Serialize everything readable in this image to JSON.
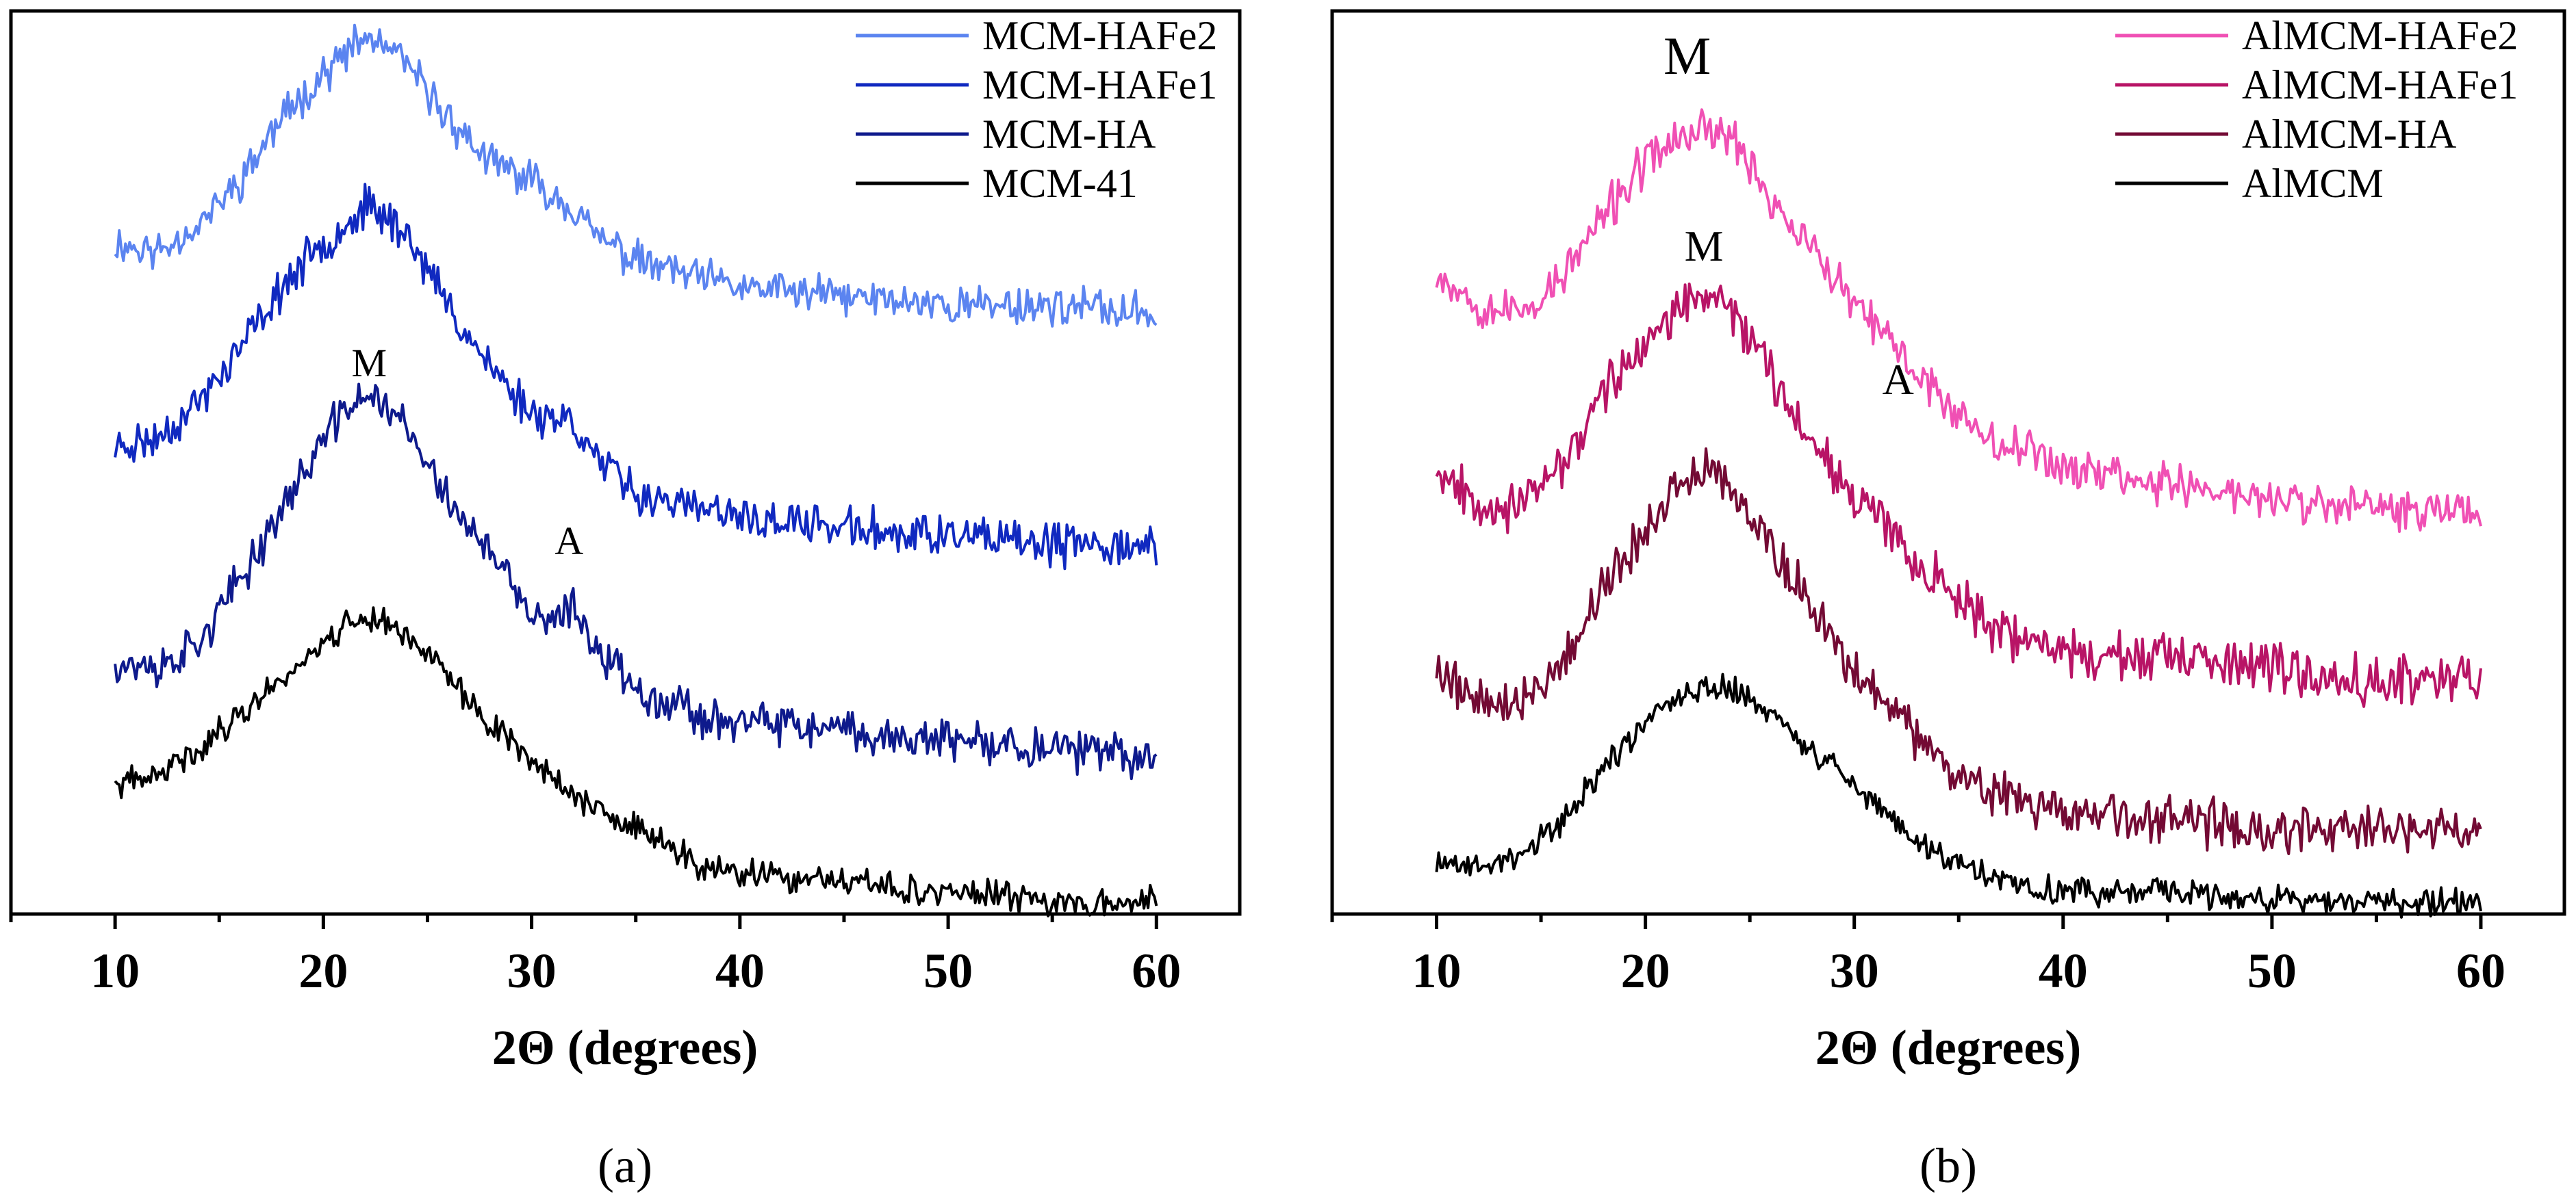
{
  "chart_data": [
    {
      "id": "a",
      "type": "line",
      "panel_label": "(a)",
      "xlabel": "2Θ (degrees)",
      "ylabel": "",
      "xlim": [
        5,
        64
      ],
      "ylim": [
        0,
        100
      ],
      "xticks": [
        10,
        20,
        30,
        40,
        50,
        60
      ],
      "legend": {
        "position": "top-right"
      },
      "peak_annotations": [
        {
          "text": "M",
          "x": 22.2,
          "y": 60
        },
        {
          "text": "A",
          "x": 31.8,
          "y": 40
        }
      ],
      "series": [
        {
          "name": "MCM-HAFe2",
          "color": "#5b84f0",
          "x": [
            10,
            12,
            14,
            16,
            18,
            20,
            21,
            22,
            23,
            24,
            25,
            26,
            28,
            30,
            32,
            33,
            35,
            38,
            40,
            45,
            50,
            55,
            60
          ],
          "values": [
            75,
            74,
            77,
            82,
            89,
            94,
            96,
            98,
            97,
            95,
            92,
            89,
            84,
            82,
            79,
            76,
            73,
            71,
            70,
            69,
            68,
            68,
            67
          ],
          "noise": 1.2,
          "seed": 11
        },
        {
          "name": "MCM-HAFe1",
          "color": "#1029c0",
          "x": [
            10,
            12,
            14,
            16,
            18,
            20,
            21,
            22,
            23,
            24,
            25,
            26,
            28,
            30,
            32,
            33,
            35,
            38,
            40,
            45,
            50,
            55,
            60
          ],
          "values": [
            52,
            53,
            57,
            63,
            70,
            75,
            77,
            79,
            78,
            76,
            72,
            68,
            61,
            56,
            55,
            51,
            47,
            45,
            44,
            43,
            42,
            41,
            41
          ],
          "noise": 1.3,
          "seed": 23
        },
        {
          "name": "MCM-HA",
          "color": "#0e1a8c",
          "x": [
            10,
            12,
            14,
            16,
            18,
            20,
            21,
            22,
            23,
            24,
            25,
            26,
            28,
            30,
            31,
            32,
            33,
            35,
            38,
            40,
            45,
            50,
            55,
            60
          ],
          "values": [
            28,
            27,
            30,
            37,
            45,
            53,
            56,
            58,
            57,
            54,
            50,
            46,
            40,
            33,
            32,
            34,
            30,
            25,
            22,
            21,
            20,
            19,
            18,
            17
          ],
          "noise": 1.3,
          "seed": 37
        },
        {
          "name": "MCM-41",
          "color": "#000000",
          "x": [
            10,
            12,
            14,
            16,
            18,
            20,
            21,
            22,
            23,
            24,
            25,
            26,
            28,
            30,
            32,
            34,
            36,
            38,
            40,
            45,
            50,
            55,
            60
          ],
          "values": [
            14,
            15,
            18,
            22,
            26,
            30,
            32,
            33,
            32,
            31,
            29,
            26,
            21,
            17,
            13,
            10,
            8,
            5,
            4,
            3,
            2,
            1,
            1
          ],
          "noise": 0.9,
          "seed": 41
        }
      ]
    },
    {
      "id": "b",
      "type": "line",
      "panel_label": "(b)",
      "xlabel": "2Θ (degrees)",
      "ylabel": "",
      "xlim": [
        5,
        64
      ],
      "ylim": [
        0,
        100
      ],
      "xticks": [
        10,
        20,
        30,
        40,
        50,
        60
      ],
      "legend": {
        "position": "top-right"
      },
      "peak_annotations": [
        {
          "text": "M",
          "x": 22.0,
          "y": 94
        },
        {
          "text": "M",
          "x": 22.8,
          "y": 73
        },
        {
          "text": "A",
          "x": 32.1,
          "y": 58
        }
      ],
      "series": [
        {
          "name": "AlMCM-HAFe2",
          "color": "#f050b4",
          "x": [
            10,
            12,
            14,
            16,
            18,
            20,
            21,
            22,
            23,
            24,
            25,
            26,
            28,
            30,
            32,
            34,
            36,
            38,
            40,
            45,
            50,
            55,
            60
          ],
          "values": [
            72,
            68,
            67,
            71,
            78,
            84,
            86,
            87,
            88,
            87,
            84,
            80,
            74,
            68,
            63,
            58,
            54,
            52,
            50,
            48,
            46,
            45,
            45
          ],
          "noise": 1.4,
          "seed": 53
        },
        {
          "name": "AlMCM-HAFe1",
          "color": "#b81466",
          "x": [
            10,
            12,
            14,
            16,
            18,
            20,
            21,
            22,
            23,
            24,
            25,
            26,
            28,
            30,
            32,
            34,
            36,
            38,
            40,
            45,
            50,
            55,
            60
          ],
          "values": [
            50,
            46,
            45,
            50,
            58,
            64,
            66,
            68,
            69,
            68,
            65,
            60,
            53,
            47,
            42,
            37,
            33,
            30,
            29,
            28,
            27,
            26,
            26
          ],
          "noise": 1.5,
          "seed": 67
        },
        {
          "name": "AlMCM-HA",
          "color": "#730a34",
          "x": [
            10,
            12,
            14,
            16,
            18,
            20,
            21,
            22,
            23,
            24,
            25,
            26,
            28,
            30,
            32,
            34,
            36,
            38,
            40,
            45,
            50,
            55,
            60
          ],
          "values": [
            27,
            24,
            23,
            28,
            36,
            43,
            46,
            48,
            49,
            48,
            45,
            41,
            34,
            27,
            22,
            17,
            14,
            12,
            11,
            10,
            9,
            9,
            9
          ],
          "noise": 1.5,
          "seed": 79
        },
        {
          "name": "AlMCM",
          "color": "#000000",
          "x": [
            10,
            12,
            14,
            16,
            18,
            20,
            21,
            22,
            23,
            24,
            25,
            26,
            28,
            30,
            32,
            34,
            36,
            38,
            40,
            45,
            50,
            55,
            60
          ],
          "values": [
            5,
            5,
            6,
            10,
            16,
            21,
            23,
            24,
            25,
            25,
            24,
            22,
            18,
            14,
            10,
            6,
            4,
            3,
            2,
            2,
            1,
            1,
            1
          ],
          "noise": 0.9,
          "seed": 89
        }
      ]
    }
  ]
}
